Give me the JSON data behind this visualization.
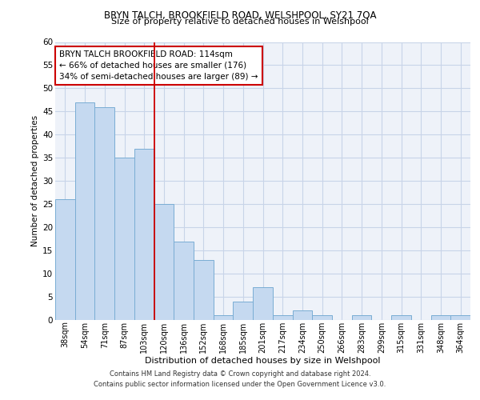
{
  "title1": "BRYN TALCH, BROOKFIELD ROAD, WELSHPOOL, SY21 7QA",
  "title2": "Size of property relative to detached houses in Welshpool",
  "xlabel": "Distribution of detached houses by size in Welshpool",
  "ylabel": "Number of detached properties",
  "categories": [
    "38sqm",
    "54sqm",
    "71sqm",
    "87sqm",
    "103sqm",
    "120sqm",
    "136sqm",
    "152sqm",
    "168sqm",
    "185sqm",
    "201sqm",
    "217sqm",
    "234sqm",
    "250sqm",
    "266sqm",
    "283sqm",
    "299sqm",
    "315sqm",
    "331sqm",
    "348sqm",
    "364sqm"
  ],
  "values": [
    26,
    47,
    46,
    35,
    37,
    25,
    17,
    13,
    1,
    4,
    7,
    1,
    2,
    1,
    0,
    1,
    0,
    1,
    0,
    1,
    1
  ],
  "bar_color": "#c5d9f0",
  "bar_edge_color": "#7aadd4",
  "vline_color": "#cc0000",
  "vline_pos": 4.5,
  "annotation_text": "BRYN TALCH BROOKFIELD ROAD: 114sqm\n← 66% of detached houses are smaller (176)\n34% of semi-detached houses are larger (89) →",
  "annotation_box_color": "#ffffff",
  "annotation_box_edge_color": "#cc0000",
  "ylim": [
    0,
    60
  ],
  "yticks": [
    0,
    5,
    10,
    15,
    20,
    25,
    30,
    35,
    40,
    45,
    50,
    55,
    60
  ],
  "grid_color": "#c8d4e8",
  "footer1": "Contains HM Land Registry data © Crown copyright and database right 2024.",
  "footer2": "Contains public sector information licensed under the Open Government Licence v3.0.",
  "bg_color": "#eef2f9",
  "fig_bg_color": "#ffffff"
}
